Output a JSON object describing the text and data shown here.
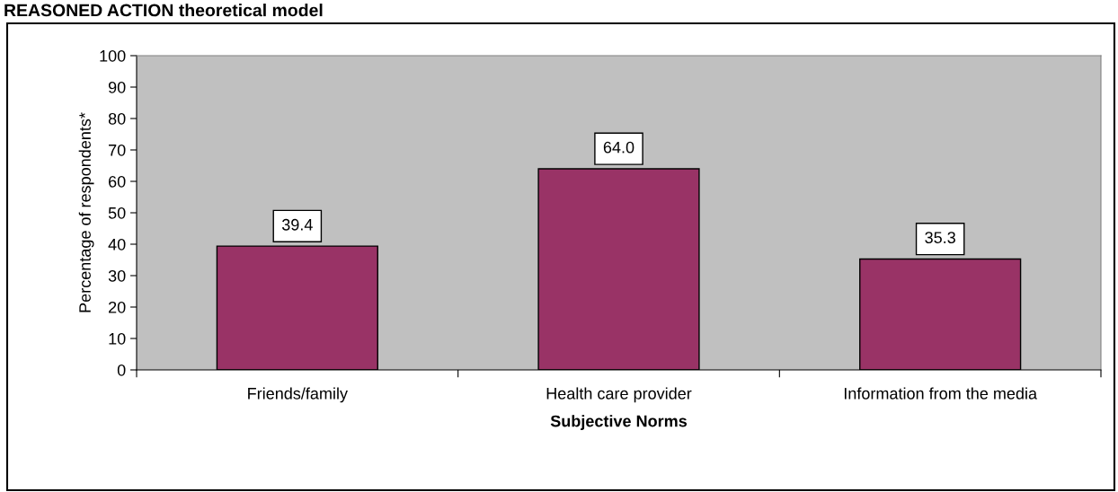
{
  "chart_data": {
    "type": "bar",
    "title": "REASONED ACTION theoretical model",
    "xlabel": "Subjective Norms",
    "ylabel": "Percentage of respondents*",
    "categories": [
      "Friends/family",
      "Health care provider",
      "Information from the media"
    ],
    "values": [
      39.4,
      64.0,
      35.3
    ],
    "value_labels": [
      "39.4",
      "64.0",
      "35.3"
    ],
    "color": "#993366",
    "ylim": [
      0,
      100
    ],
    "yticks": [
      0,
      10,
      20,
      30,
      40,
      50,
      60,
      70,
      80,
      90,
      100
    ],
    "grid": false,
    "legend": false
  }
}
